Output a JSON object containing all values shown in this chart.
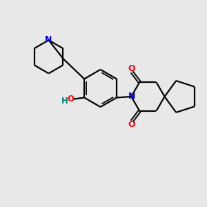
{
  "bg_color": "#e8e8e8",
  "bond_color": "#000000",
  "N_color": "#0000cd",
  "O_color": "#ff0000",
  "H_color": "#008080",
  "line_width": 1.6,
  "figsize": [
    3.0,
    3.0
  ],
  "dpi": 100,
  "xlim": [
    0,
    10
  ],
  "ylim": [
    0,
    10
  ]
}
